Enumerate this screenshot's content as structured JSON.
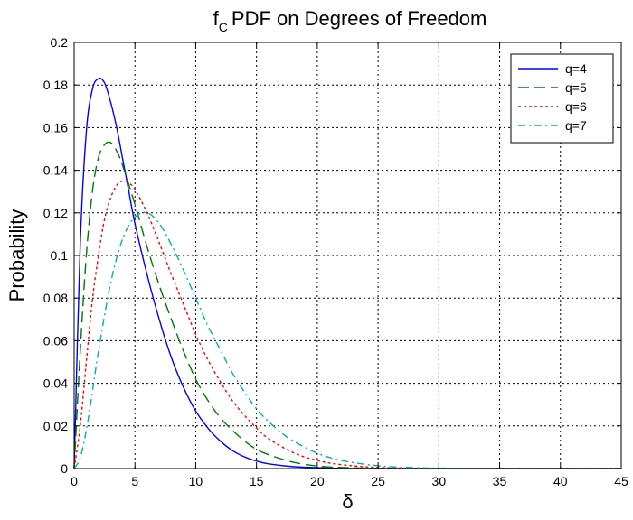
{
  "chart_data": {
    "type": "line",
    "title": "PDF on Degrees of Freedom",
    "title_symbol": "f",
    "title_subscript": "C",
    "xlabel": "δ",
    "ylabel": "Probability",
    "xlim": [
      0,
      45
    ],
    "ylim": [
      0,
      0.2
    ],
    "xticks": [
      0,
      5,
      10,
      15,
      20,
      25,
      30,
      35,
      40,
      45
    ],
    "yticks": [
      0,
      0.02,
      0.04,
      0.06,
      0.08,
      0.1,
      0.12,
      0.14,
      0.16,
      0.18,
      0.2
    ],
    "grid": true,
    "legend_position": "top-right",
    "series": [
      {
        "name": "q=4",
        "color": "#0000ff",
        "dash": "solid",
        "x": [
          0,
          0.5,
          1,
          1.5,
          2,
          2.5,
          3,
          3.5,
          4,
          4.5,
          5,
          6,
          7,
          8,
          9,
          10,
          11,
          12,
          13,
          14,
          15,
          16,
          18,
          20,
          22,
          25,
          30,
          35,
          40,
          45
        ],
        "y": [
          0,
          0.105,
          0.158,
          0.178,
          0.183,
          0.181,
          0.172,
          0.16,
          0.145,
          0.13,
          0.115,
          0.091,
          0.07,
          0.052,
          0.038,
          0.027,
          0.019,
          0.013,
          0.0085,
          0.0055,
          0.0035,
          0.0022,
          0.0009,
          0.0004,
          0.0001,
          0,
          0,
          0,
          0,
          0
        ]
      },
      {
        "name": "q=5",
        "color": "#007a00",
        "dash": "long-dash",
        "x": [
          0,
          0.5,
          1,
          1.5,
          2,
          2.5,
          3,
          3.5,
          4,
          5,
          6,
          7,
          8,
          9,
          10,
          11,
          12,
          13,
          14,
          15,
          16,
          18,
          20,
          22,
          25,
          30,
          35,
          40,
          45
        ],
        "y": [
          0,
          0.055,
          0.1,
          0.13,
          0.146,
          0.152,
          0.153,
          0.149,
          0.142,
          0.124,
          0.104,
          0.086,
          0.07,
          0.055,
          0.042,
          0.032,
          0.024,
          0.018,
          0.013,
          0.009,
          0.0065,
          0.003,
          0.0012,
          0.0005,
          0.0001,
          0,
          0,
          0,
          0
        ]
      },
      {
        "name": "q=6",
        "color": "#ff0000",
        "dash": "dot",
        "x": [
          0,
          0.5,
          1,
          1.5,
          2,
          2.5,
          3,
          3.5,
          4,
          4.5,
          5,
          6,
          7,
          8,
          9,
          10,
          11,
          12,
          13,
          14,
          15,
          16,
          18,
          20,
          22,
          25,
          30,
          35,
          40,
          45
        ],
        "y": [
          0,
          0.02,
          0.05,
          0.079,
          0.1,
          0.117,
          0.127,
          0.133,
          0.135,
          0.134,
          0.131,
          0.12,
          0.106,
          0.091,
          0.077,
          0.063,
          0.051,
          0.041,
          0.032,
          0.025,
          0.019,
          0.014,
          0.0075,
          0.0038,
          0.0018,
          0.0005,
          0,
          0,
          0,
          0
        ]
      },
      {
        "name": "q=7",
        "color": "#00b0b0",
        "dash": "dash-dot",
        "x": [
          0,
          0.5,
          1,
          1.5,
          2,
          3,
          4,
          5,
          6,
          7,
          8,
          9,
          10,
          11,
          12,
          13,
          14,
          15,
          16,
          17,
          18,
          20,
          22,
          25,
          28,
          30,
          35,
          40,
          45
        ],
        "y": [
          0,
          0.005,
          0.018,
          0.036,
          0.055,
          0.087,
          0.108,
          0.118,
          0.12,
          0.115,
          0.105,
          0.093,
          0.08,
          0.067,
          0.056,
          0.045,
          0.036,
          0.028,
          0.022,
          0.017,
          0.013,
          0.0072,
          0.0038,
          0.0013,
          0.0004,
          0.0002,
          0,
          0,
          0
        ]
      }
    ]
  }
}
